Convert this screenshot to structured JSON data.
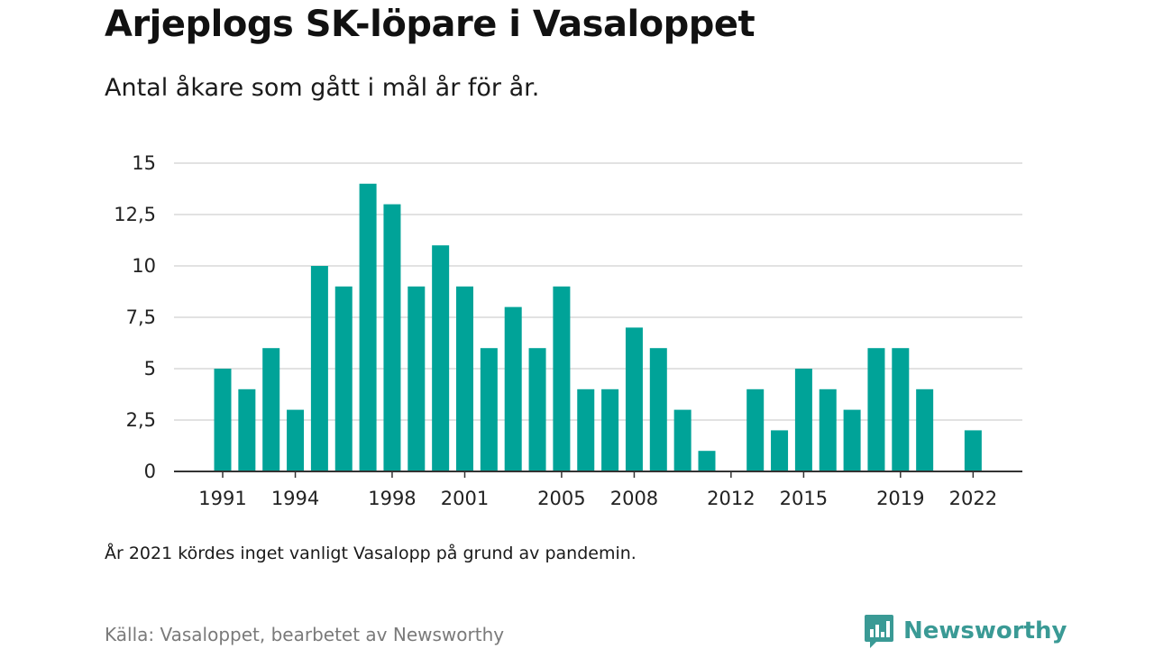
{
  "title": "Arjeplogs SK-löpare i Vasaloppet",
  "subtitle": "Antal åkare som gått i mål år för år.",
  "note": "År 2021 kördes inget vanligt Vasalopp på grund av pandemin.",
  "source": "Källa: Vasaloppet, bearbetet av Newsworthy",
  "brand": {
    "name": "Newsworthy",
    "icon": "newsworthy-logo-icon",
    "color": "#3a9a95"
  },
  "colors": {
    "bar": "#00a398",
    "grid": "#d9d9d9",
    "axis": "#333333"
  },
  "chart_data": {
    "type": "bar",
    "title": "Arjeplogs SK-löpare i Vasaloppet",
    "subtitle": "Antal åkare som gått i mål år för år.",
    "xlabel": "",
    "ylabel": "",
    "ylim": [
      0,
      15
    ],
    "grid": true,
    "yticks": [
      "0",
      "2,5",
      "5",
      "7,5",
      "10",
      "12,5",
      "15"
    ],
    "xticks": [
      "1991",
      "1994",
      "1998",
      "2001",
      "2005",
      "2008",
      "2012",
      "2015",
      "2019",
      "2022"
    ],
    "categories": [
      1991,
      1992,
      1993,
      1994,
      1995,
      1996,
      1997,
      1998,
      1999,
      2000,
      2001,
      2002,
      2003,
      2004,
      2005,
      2006,
      2007,
      2008,
      2009,
      2010,
      2011,
      2012,
      2013,
      2014,
      2015,
      2016,
      2017,
      2018,
      2019,
      2020,
      2021,
      2022
    ],
    "values": [
      5,
      4,
      6,
      3,
      10,
      9,
      14,
      13,
      9,
      11,
      9,
      6,
      8,
      6,
      9,
      4,
      4,
      7,
      6,
      3,
      1,
      0,
      4,
      2,
      5,
      4,
      3,
      6,
      6,
      4,
      0,
      2
    ]
  }
}
